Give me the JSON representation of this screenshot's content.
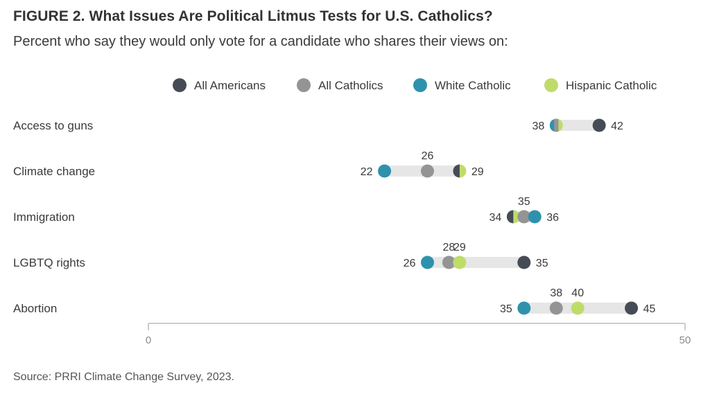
{
  "figure": {
    "title": "FIGURE 2.  What Issues Are Political Litmus Tests for U.S. Catholics?",
    "subtitle": "Percent who say they would only vote for a candidate who shares their views on:",
    "source": "Source: PRRI Climate Change Survey, 2023."
  },
  "chart_data": {
    "type": "dot",
    "title": "What Issues Are Political Litmus Tests for U.S. Catholics?",
    "categories": [
      "Access to guns",
      "Climate change",
      "Immigration",
      "LGBTQ rights",
      "Abortion"
    ],
    "series": [
      {
        "name": "All Americans",
        "color": "#454c55",
        "values": [
          42,
          29,
          34,
          35,
          45
        ]
      },
      {
        "name": "All Catholics",
        "color": "#949494",
        "values": [
          38,
          26,
          35,
          28,
          38
        ]
      },
      {
        "name": "White Catholic",
        "color": "#2e92ad",
        "values": [
          38,
          22,
          36,
          26,
          35
        ]
      },
      {
        "name": "Hispanic Catholic",
        "color": "#bfdc6a",
        "values": [
          38,
          29,
          34,
          29,
          40
        ]
      }
    ],
    "data_labels": [
      {
        "category": "Access to guns",
        "labels": [
          "38",
          "42"
        ]
      },
      {
        "category": "Climate change",
        "labels": [
          "22",
          "26",
          "29"
        ]
      },
      {
        "category": "Immigration",
        "labels": [
          "34",
          "35",
          "36"
        ]
      },
      {
        "category": "LGBTQ rights",
        "labels": [
          "26",
          "28",
          "29",
          "35"
        ]
      },
      {
        "category": "Abortion",
        "labels": [
          "35",
          "38",
          "40",
          "45"
        ]
      }
    ],
    "xlim": [
      0,
      50
    ],
    "xticks": [
      "0",
      "50"
    ],
    "legend_position": "top",
    "grid": false,
    "range_bar_color": "#e6e6e6",
    "axis_color": "#cccccc"
  }
}
